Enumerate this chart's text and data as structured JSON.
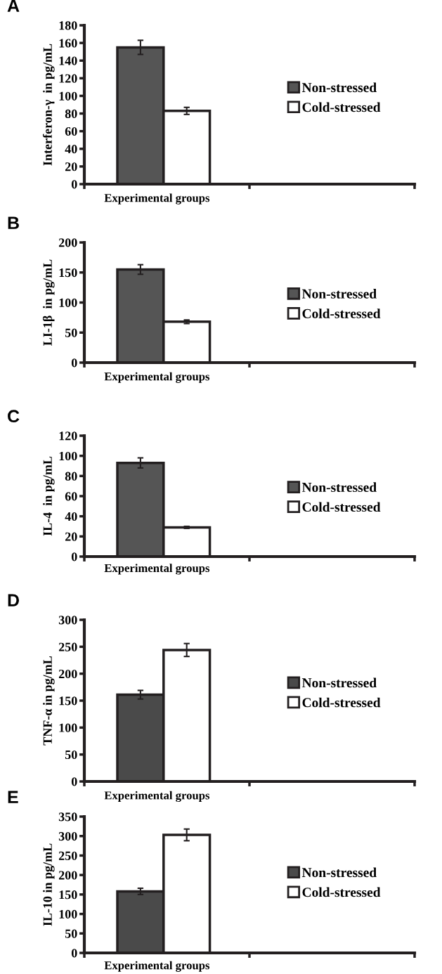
{
  "chart_data": [
    {
      "type": "bar",
      "title": "A",
      "ylabel": "Interferon-γ  in pg/mL",
      "xlabel": "Experimental groups",
      "categories": [
        null,
        null
      ],
      "ylim": [
        0,
        180
      ],
      "yticks": [
        0,
        20,
        40,
        60,
        80,
        100,
        120,
        140,
        160,
        180
      ],
      "legend": "right",
      "grid": false,
      "series": [
        {
          "name": "Non-stressed",
          "color": "#555555",
          "values": [
            155,
            null
          ],
          "errors": [
            8,
            null
          ]
        },
        {
          "name": "Cold-stressed",
          "color": "#ffffff",
          "values": [
            83,
            null
          ],
          "errors": [
            4,
            null
          ]
        }
      ]
    },
    {
      "type": "bar",
      "title": "B",
      "ylabel": "LI-1β  in pg/mL",
      "xlabel": "Experimental groups",
      "categories": [
        null,
        null
      ],
      "ylim": [
        0,
        200
      ],
      "yticks": [
        0,
        50,
        100,
        150,
        200
      ],
      "legend": "right",
      "grid": false,
      "series": [
        {
          "name": "Non-stressed",
          "color": "#555555",
          "values": [
            155,
            null
          ],
          "errors": [
            8,
            null
          ]
        },
        {
          "name": "Cold-stressed",
          "color": "#ffffff",
          "values": [
            68,
            null
          ],
          "errors": [
            3,
            null
          ]
        }
      ]
    },
    {
      "type": "bar",
      "title": "C",
      "ylabel": "IL-4  in pg/mL",
      "xlabel": "Experimental groups",
      "categories": [
        null,
        null
      ],
      "ylim": [
        0,
        120
      ],
      "yticks": [
        0,
        20,
        40,
        60,
        80,
        100,
        120
      ],
      "legend": "right",
      "grid": false,
      "series": [
        {
          "name": "Non-stressed",
          "color": "#555555",
          "values": [
            93,
            null
          ],
          "errors": [
            5,
            null
          ]
        },
        {
          "name": "Cold-stressed",
          "color": "#ffffff",
          "values": [
            29,
            null
          ],
          "errors": [
            1,
            null
          ]
        }
      ]
    },
    {
      "type": "bar",
      "title": "D",
      "ylabel": "TNF-α in pg/mL",
      "xlabel": "Experimental groups",
      "categories": [
        null,
        null
      ],
      "ylim": [
        0,
        300
      ],
      "yticks": [
        0,
        50,
        100,
        150,
        200,
        250,
        300
      ],
      "legend": "right",
      "grid": false,
      "series": [
        {
          "name": "Non-stressed",
          "color": "#4a4a4a",
          "values": [
            161,
            null
          ],
          "errors": [
            8,
            null
          ]
        },
        {
          "name": "Cold-stressed",
          "color": "#ffffff",
          "values": [
            244,
            null
          ],
          "errors": [
            12,
            null
          ]
        }
      ]
    },
    {
      "type": "bar",
      "title": "E",
      "ylabel": "IL-10 in pg/mL",
      "xlabel": "Experimental groups",
      "categories": [
        null,
        null
      ],
      "ylim": [
        0,
        350
      ],
      "yticks": [
        0,
        50,
        100,
        150,
        200,
        250,
        300,
        350
      ],
      "legend": "right",
      "grid": false,
      "series": [
        {
          "name": "Non-stressed",
          "color": "#4a4a4a",
          "values": [
            158,
            null
          ],
          "errors": [
            8,
            null
          ]
        },
        {
          "name": "Cold-stressed",
          "color": "#ffffff",
          "values": [
            303,
            null
          ],
          "errors": [
            15,
            null
          ]
        }
      ]
    }
  ]
}
